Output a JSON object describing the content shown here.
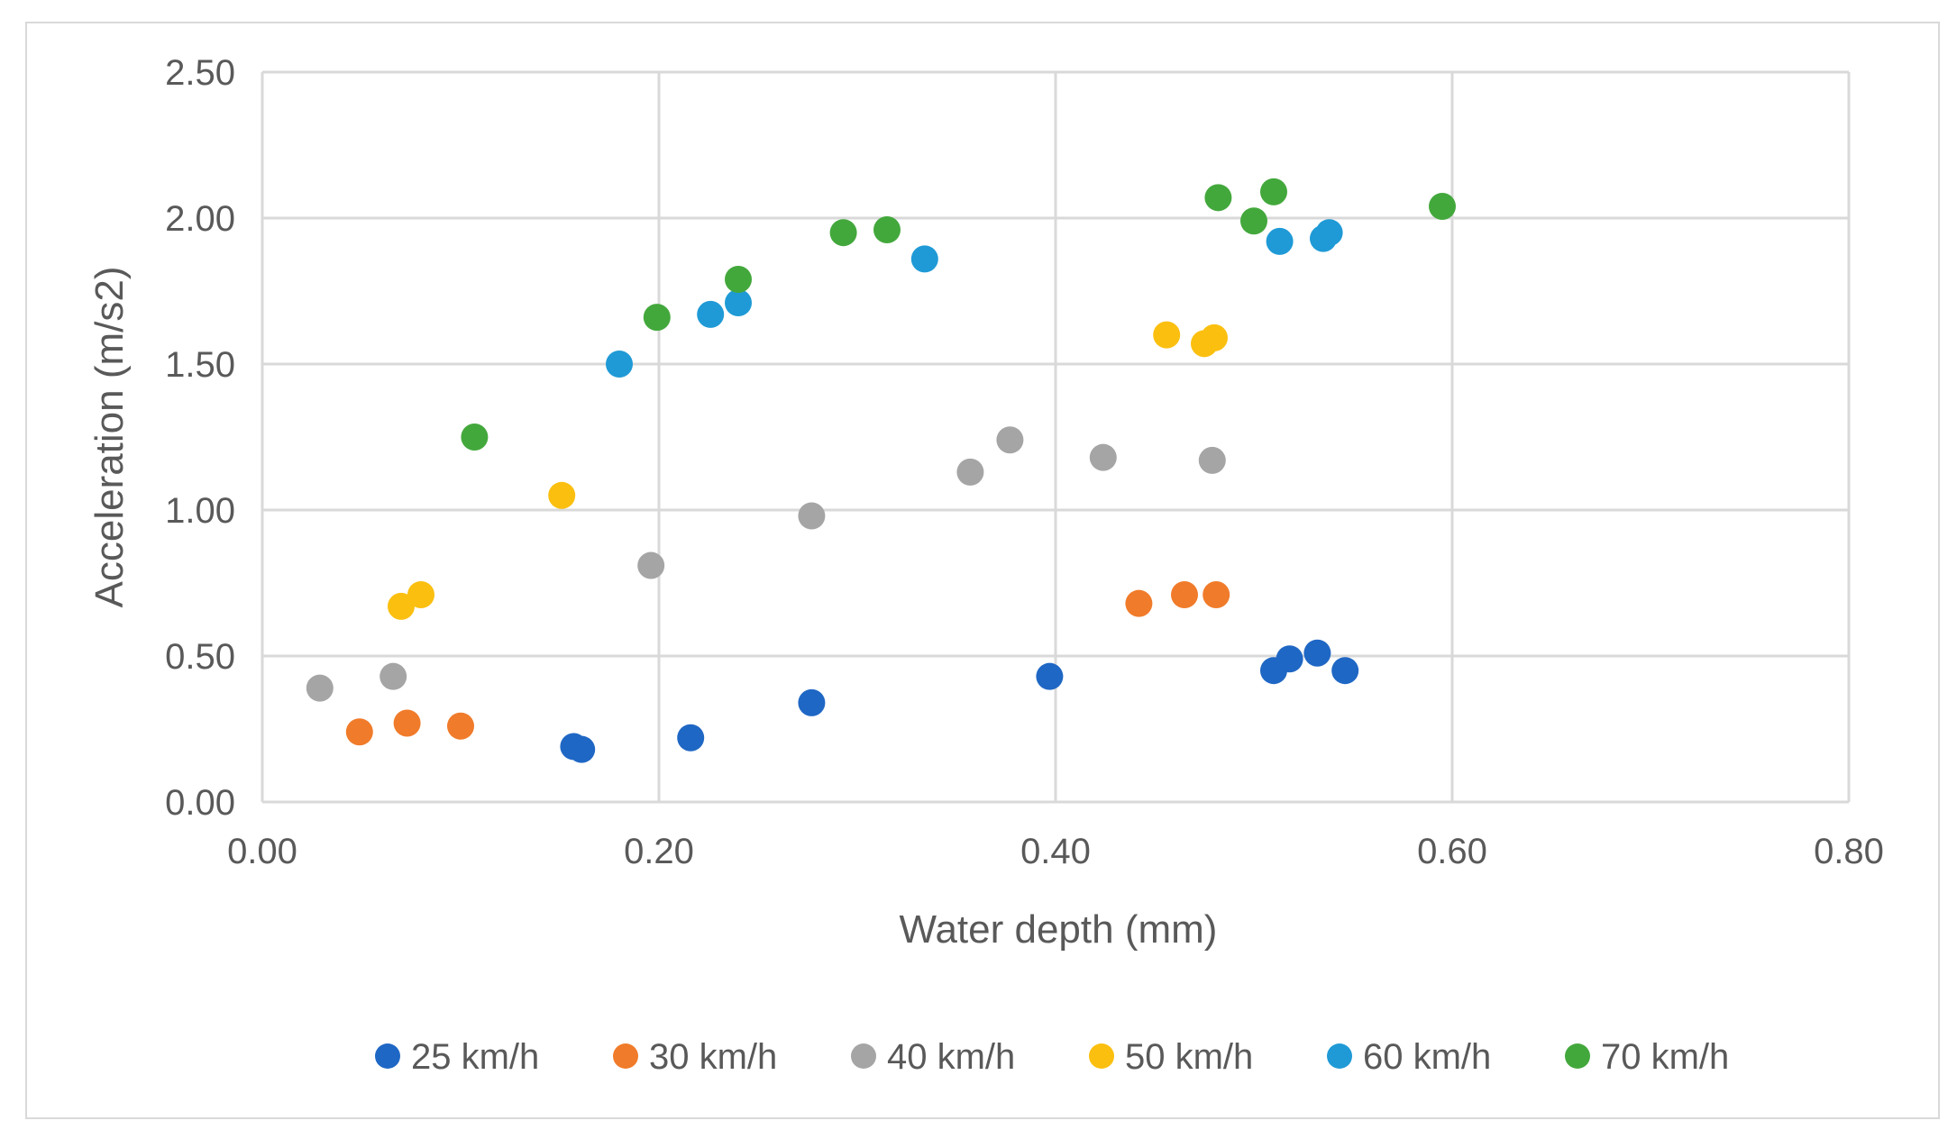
{
  "chart_data": {
    "type": "scatter",
    "title": "",
    "xlabel": "Water depth (mm)",
    "ylabel": "Acceleration (m/s2)",
    "xlim": [
      0,
      0.8
    ],
    "ylim": [
      0,
      2.5
    ],
    "x_ticks": [
      "0.00",
      "0.20",
      "0.40",
      "0.60",
      "0.80"
    ],
    "y_ticks": [
      "0.00",
      "0.50",
      "1.00",
      "1.50",
      "2.00",
      "2.50"
    ],
    "grid": true,
    "legend_position": "bottom",
    "series": [
      {
        "name": "25 km/h",
        "color": "#1f67c4",
        "points": [
          [
            0.157,
            0.19
          ],
          [
            0.161,
            0.18
          ],
          [
            0.216,
            0.22
          ],
          [
            0.277,
            0.34
          ],
          [
            0.397,
            0.43
          ],
          [
            0.51,
            0.45
          ],
          [
            0.518,
            0.49
          ],
          [
            0.532,
            0.51
          ],
          [
            0.546,
            0.45
          ]
        ]
      },
      {
        "name": "30 km/h",
        "color": "#f07b2a",
        "points": [
          [
            0.049,
            0.24
          ],
          [
            0.073,
            0.27
          ],
          [
            0.1,
            0.26
          ],
          [
            0.442,
            0.68
          ],
          [
            0.465,
            0.71
          ],
          [
            0.481,
            0.71
          ]
        ]
      },
      {
        "name": "40 km/h",
        "color": "#a5a5a5",
        "points": [
          [
            0.029,
            0.39
          ],
          [
            0.066,
            0.43
          ],
          [
            0.196,
            0.81
          ],
          [
            0.277,
            0.98
          ],
          [
            0.357,
            1.13
          ],
          [
            0.377,
            1.24
          ],
          [
            0.424,
            1.18
          ],
          [
            0.479,
            1.17
          ]
        ]
      },
      {
        "name": "50 km/h",
        "color": "#fbbf0f",
        "points": [
          [
            0.07,
            0.67
          ],
          [
            0.08,
            0.71
          ],
          [
            0.151,
            1.05
          ],
          [
            0.456,
            1.6
          ],
          [
            0.475,
            1.57
          ],
          [
            0.48,
            1.59
          ]
        ]
      },
      {
        "name": "60 km/h",
        "color": "#1f9ad6",
        "points": [
          [
            0.18,
            1.5
          ],
          [
            0.226,
            1.67
          ],
          [
            0.24,
            1.71
          ],
          [
            0.334,
            1.86
          ],
          [
            0.513,
            1.92
          ],
          [
            0.535,
            1.93
          ],
          [
            0.538,
            1.95
          ]
        ]
      },
      {
        "name": "70 km/h",
        "color": "#43a83c",
        "points": [
          [
            0.107,
            1.25
          ],
          [
            0.199,
            1.66
          ],
          [
            0.24,
            1.79
          ],
          [
            0.293,
            1.95
          ],
          [
            0.315,
            1.96
          ],
          [
            0.482,
            2.07
          ],
          [
            0.5,
            1.99
          ],
          [
            0.51,
            2.09
          ],
          [
            0.595,
            2.04
          ]
        ]
      }
    ]
  }
}
